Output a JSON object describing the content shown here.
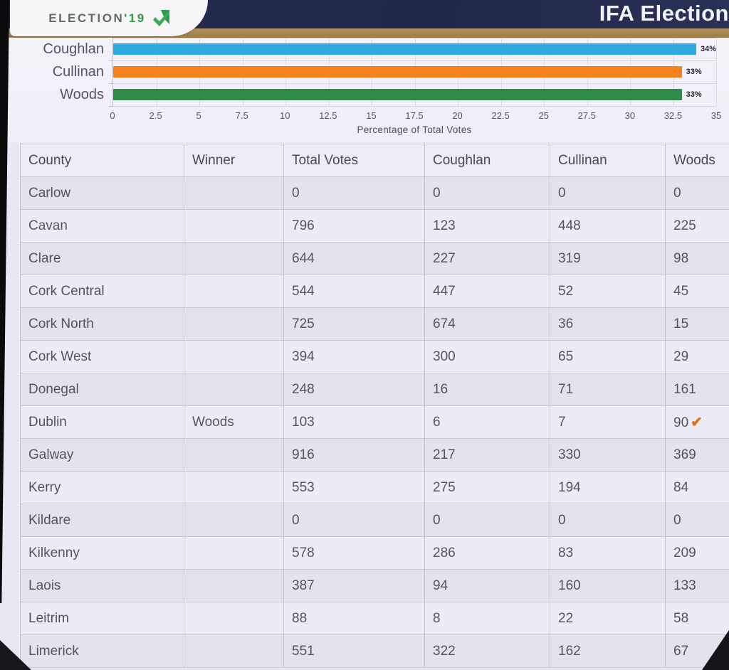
{
  "header": {
    "logo_prefix": "ELECTION",
    "logo_suffix": "'19",
    "title": "IFA Election"
  },
  "chart_data": {
    "type": "bar",
    "orientation": "horizontal",
    "title": "",
    "categories": [
      "Coughlan",
      "Cullinan",
      "Woods"
    ],
    "values": [
      34,
      33,
      33
    ],
    "value_labels": [
      "34%",
      "33%",
      "33%"
    ],
    "bar_colors": [
      "#2ea9e1",
      "#f5821f",
      "#2e8c46"
    ],
    "xlabel": "Percentage of Total Votes",
    "ylabel": "",
    "xlim": [
      0,
      35
    ],
    "xtick_labels": [
      "0",
      "2.5",
      "5",
      "7.5",
      "10",
      "12.5",
      "15",
      "17.5",
      "20",
      "22.5",
      "25",
      "27.5",
      "30",
      "32.5",
      "35"
    ],
    "grid": true,
    "legend": false
  },
  "table": {
    "columns": [
      "County",
      "Winner",
      "Total Votes",
      "Coughlan",
      "Cullinan",
      "Woods"
    ],
    "rows": [
      {
        "county": "Carlow",
        "winner": "",
        "total": "0",
        "coughlan": "0",
        "cullinan": "0",
        "woods": "0",
        "woods_check": false
      },
      {
        "county": "Cavan",
        "winner": "",
        "total": "796",
        "coughlan": "123",
        "cullinan": "448",
        "woods": "225",
        "woods_check": false
      },
      {
        "county": "Clare",
        "winner": "",
        "total": "644",
        "coughlan": "227",
        "cullinan": "319",
        "woods": "98",
        "woods_check": false
      },
      {
        "county": "Cork Central",
        "winner": "",
        "total": "544",
        "coughlan": "447",
        "cullinan": "52",
        "woods": "45",
        "woods_check": false
      },
      {
        "county": "Cork North",
        "winner": "",
        "total": "725",
        "coughlan": "674",
        "cullinan": "36",
        "woods": "15",
        "woods_check": false
      },
      {
        "county": "Cork West",
        "winner": "",
        "total": "394",
        "coughlan": "300",
        "cullinan": "65",
        "woods": "29",
        "woods_check": false
      },
      {
        "county": "Donegal",
        "winner": "",
        "total": "248",
        "coughlan": "16",
        "cullinan": "71",
        "woods": "161",
        "woods_check": false
      },
      {
        "county": "Dublin",
        "winner": "Woods",
        "total": "103",
        "coughlan": "6",
        "cullinan": "7",
        "woods": "90",
        "woods_check": true
      },
      {
        "county": "Galway",
        "winner": "",
        "total": "916",
        "coughlan": "217",
        "cullinan": "330",
        "woods": "369",
        "woods_check": false
      },
      {
        "county": "Kerry",
        "winner": "",
        "total": "553",
        "coughlan": "275",
        "cullinan": "194",
        "woods": "84",
        "woods_check": false
      },
      {
        "county": "Kildare",
        "winner": "",
        "total": "0",
        "coughlan": "0",
        "cullinan": "0",
        "woods": "0",
        "woods_check": false
      },
      {
        "county": "Kilkenny",
        "winner": "",
        "total": "578",
        "coughlan": "286",
        "cullinan": "83",
        "woods": "209",
        "woods_check": false
      },
      {
        "county": "Laois",
        "winner": "",
        "total": "387",
        "coughlan": "94",
        "cullinan": "160",
        "woods": "133",
        "woods_check": false
      },
      {
        "county": "Leitrim",
        "winner": "",
        "total": "88",
        "coughlan": "8",
        "cullinan": "22",
        "woods": "58",
        "woods_check": false
      },
      {
        "county": "Limerick",
        "winner": "",
        "total": "551",
        "coughlan": "322",
        "cullinan": "162",
        "woods": "67",
        "woods_check": false
      }
    ]
  },
  "colors": {
    "header_navy": "#232a4c",
    "gold_band": "#a8884e",
    "logo_green": "#2f9a4c",
    "check_mark": "#d9731f",
    "chart_bg": "#f2f0f7"
  }
}
